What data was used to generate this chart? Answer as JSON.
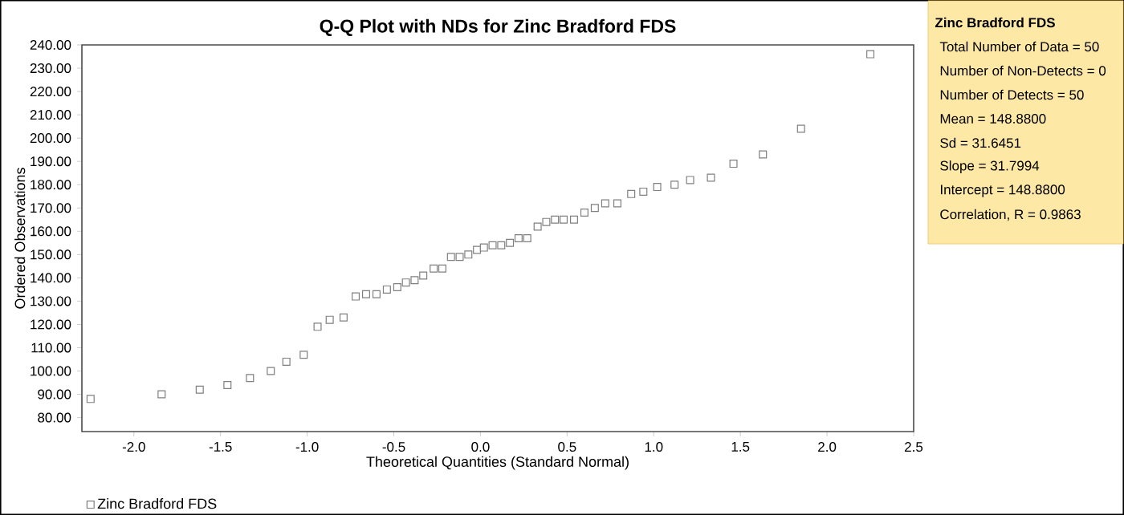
{
  "chart_data": {
    "type": "scatter",
    "title": "Q-Q Plot with NDs for Zinc Bradford FDS",
    "xlabel": "Theoretical Quantities (Standard Normal)",
    "ylabel": "Ordered Observations",
    "x": [
      -2.25,
      -1.84,
      -1.62,
      -1.46,
      -1.33,
      -1.21,
      -1.12,
      -1.02,
      -0.94,
      -0.87,
      -0.79,
      -0.72,
      -0.66,
      -0.6,
      -0.54,
      -0.48,
      -0.43,
      -0.38,
      -0.33,
      -0.27,
      -0.22,
      -0.17,
      -0.12,
      -0.07,
      -0.02,
      0.02,
      0.07,
      0.12,
      0.17,
      0.22,
      0.27,
      0.33,
      0.38,
      0.43,
      0.48,
      0.54,
      0.6,
      0.66,
      0.72,
      0.79,
      0.87,
      0.94,
      1.02,
      1.12,
      1.21,
      1.33,
      1.46,
      1.63,
      1.85,
      2.25
    ],
    "series": [
      {
        "name": "Zinc Bradford FDS",
        "color": "#808080",
        "values": [
          88,
          90,
          92,
          94,
          97,
          100,
          104,
          107,
          119,
          122,
          123,
          132,
          133,
          133,
          135,
          136,
          138,
          139,
          141,
          144,
          144,
          149,
          149,
          150,
          152,
          153,
          154,
          154,
          155,
          157,
          157,
          162,
          164,
          165,
          165,
          165,
          168,
          170,
          172,
          172,
          176,
          177,
          179,
          180,
          182,
          183,
          189,
          193,
          204,
          236
        ]
      }
    ],
    "xlim": [
      -2.3,
      2.5
    ],
    "xticks": [
      {
        "value": -2.0,
        "label": "-2.0"
      },
      {
        "value": -1.5,
        "label": "-1.5"
      },
      {
        "value": -1.0,
        "label": "-1.0"
      },
      {
        "value": -0.5,
        "label": "-0.5"
      },
      {
        "value": 0.0,
        "label": "0.0"
      },
      {
        "value": 0.5,
        "label": "0.5"
      },
      {
        "value": 1.0,
        "label": "1.0"
      },
      {
        "value": 1.5,
        "label": "1.5"
      },
      {
        "value": 2.0,
        "label": "2.0"
      },
      {
        "value": 2.5,
        "label": "2.5"
      }
    ],
    "ylim": [
      74,
      240
    ],
    "yticks": [
      {
        "value": 80,
        "label": "80.00"
      },
      {
        "value": 90,
        "label": "90.00"
      },
      {
        "value": 100,
        "label": "100.00"
      },
      {
        "value": 110,
        "label": "110.00"
      },
      {
        "value": 120,
        "label": "120.00"
      },
      {
        "value": 130,
        "label": "130.00"
      },
      {
        "value": 140,
        "label": "140.00"
      },
      {
        "value": 150,
        "label": "150.00"
      },
      {
        "value": 160,
        "label": "160.00"
      },
      {
        "value": 170,
        "label": "170.00"
      },
      {
        "value": 180,
        "label": "180.00"
      },
      {
        "value": 190,
        "label": "190.00"
      },
      {
        "value": 200,
        "label": "200.00"
      },
      {
        "value": 210,
        "label": "210.00"
      },
      {
        "value": 220,
        "label": "220.00"
      },
      {
        "value": 230,
        "label": "230.00"
      },
      {
        "value": 240,
        "label": "240.00"
      }
    ],
    "marker": "square",
    "legend": "bottom left",
    "grid": false,
    "annotations": [
      "Zinc Bradford FDS",
      "Total Number of Data = 50",
      "Number of Non-Detects = 0",
      "Number of Detects = 50",
      "Mean = 148.8800",
      "Sd = 31.6451",
      "Slope = 31.7994",
      "Intercept = 148.8800",
      "Correlation, R = 0.9863"
    ]
  }
}
